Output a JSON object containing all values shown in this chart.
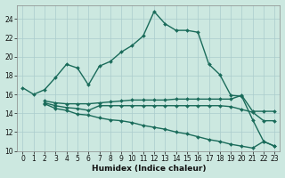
{
  "xlabel": "Humidex (Indice chaleur)",
  "xlim": [
    -0.5,
    23.5
  ],
  "ylim": [
    10,
    25.5
  ],
  "yticks": [
    10,
    12,
    14,
    16,
    18,
    20,
    22,
    24
  ],
  "xticks": [
    0,
    1,
    2,
    3,
    4,
    5,
    6,
    7,
    8,
    9,
    10,
    11,
    12,
    13,
    14,
    15,
    16,
    17,
    18,
    19,
    20,
    21,
    22,
    23
  ],
  "bg_color": "#cce8e0",
  "grid_color": "#aacccc",
  "line_color": "#1a6b5a",
  "lines": [
    {
      "x": [
        0,
        1,
        2,
        3,
        4,
        5,
        6,
        7,
        8,
        9,
        10,
        11,
        12,
        13,
        14,
        15,
        16,
        17,
        18,
        19,
        20,
        21,
        22,
        23
      ],
      "y": [
        16.7,
        16.0,
        16.5,
        17.8,
        19.2,
        18.8,
        17.0,
        19.0,
        19.5,
        20.5,
        21.2,
        22.2,
        24.8,
        23.5,
        22.8,
        22.8,
        22.6,
        19.2,
        18.1,
        15.9,
        15.8,
        13.3,
        11.0,
        10.5
      ],
      "marker": "D",
      "markersize": 2.0,
      "linewidth": 1.0
    },
    {
      "x": [
        2,
        3,
        4,
        5,
        6,
        7,
        8,
        9,
        10,
        11,
        12,
        13,
        14,
        15,
        16,
        17,
        18,
        19,
        20,
        21,
        22,
        23
      ],
      "y": [
        15.3,
        15.1,
        15.0,
        15.0,
        15.0,
        15.1,
        15.2,
        15.3,
        15.4,
        15.4,
        15.4,
        15.4,
        15.5,
        15.5,
        15.5,
        15.5,
        15.5,
        15.5,
        15.9,
        14.2,
        14.2,
        14.2
      ],
      "marker": "D",
      "markersize": 2.0,
      "linewidth": 1.0
    },
    {
      "x": [
        2,
        3,
        4,
        5,
        6,
        7,
        8,
        9,
        10,
        11,
        12,
        13,
        14,
        15,
        16,
        17,
        18,
        19,
        20,
        21,
        22,
        23
      ],
      "y": [
        15.1,
        14.8,
        14.6,
        14.5,
        14.3,
        14.8,
        14.8,
        14.8,
        14.8,
        14.8,
        14.8,
        14.8,
        14.8,
        14.8,
        14.8,
        14.8,
        14.8,
        14.7,
        14.4,
        14.1,
        13.2,
        13.2
      ],
      "marker": "D",
      "markersize": 2.0,
      "linewidth": 1.0
    },
    {
      "x": [
        2,
        3,
        4,
        5,
        6,
        7,
        8,
        9,
        10,
        11,
        12,
        13,
        14,
        15,
        16,
        17,
        18,
        19,
        20,
        21,
        22,
        23
      ],
      "y": [
        15.0,
        14.5,
        14.3,
        13.9,
        13.8,
        13.5,
        13.3,
        13.2,
        13.0,
        12.7,
        12.5,
        12.3,
        12.0,
        11.8,
        11.5,
        11.2,
        11.0,
        10.7,
        10.5,
        10.3,
        11.0,
        10.5
      ],
      "marker": "D",
      "markersize": 2.0,
      "linewidth": 1.0
    }
  ]
}
